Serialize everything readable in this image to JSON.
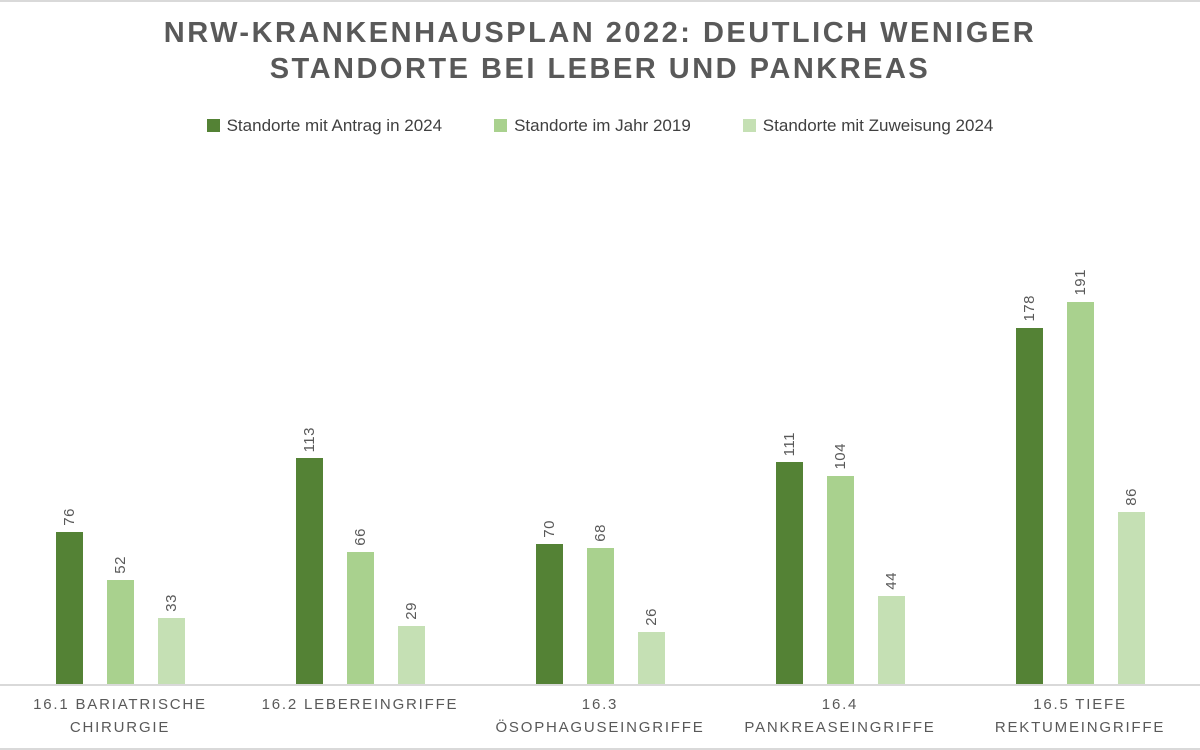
{
  "page": {
    "background_color": "#FFFFFF",
    "border_line_color": "#D9D9D9",
    "text_gray": "#595959"
  },
  "chart_data": {
    "type": "bar",
    "title": "NRW-KRANKENHAUSPLAN 2022: DEUTLICH WENIGER STANDORTE BEI LEBER UND PANKREAS",
    "title_color": "#595959",
    "categories": [
      "16.1 BARIATRISCHE CHIRURGIE",
      "16.2 LEBEREINGRIFFE",
      "16.3 ÖSOPHAGUSEINGRIFFE",
      "16.4 PANKREASEINGRIFFE",
      "16.5 TIEFE REKTUMEINGRIFFE"
    ],
    "series": [
      {
        "name": "Standorte mit Antrag in 2024",
        "color": "#548235",
        "values": [
          76,
          113,
          70,
          111,
          178
        ]
      },
      {
        "name": "Standorte im Jahr 2019",
        "color": "#A9D18E",
        "values": [
          52,
          66,
          68,
          104,
          191
        ]
      },
      {
        "name": "Standorte mit Zuweisung 2024",
        "color": "#C5E0B4",
        "values": [
          33,
          29,
          26,
          44,
          86
        ]
      }
    ],
    "legend_position": "top",
    "grid": false,
    "value_axis_visible": false,
    "data_labels": {
      "visible": true,
      "rotation": "vertical-bottom-to-top",
      "color": "#595959"
    },
    "axis_line_color": "#D9D9D9",
    "category_label_color": "#595959"
  }
}
